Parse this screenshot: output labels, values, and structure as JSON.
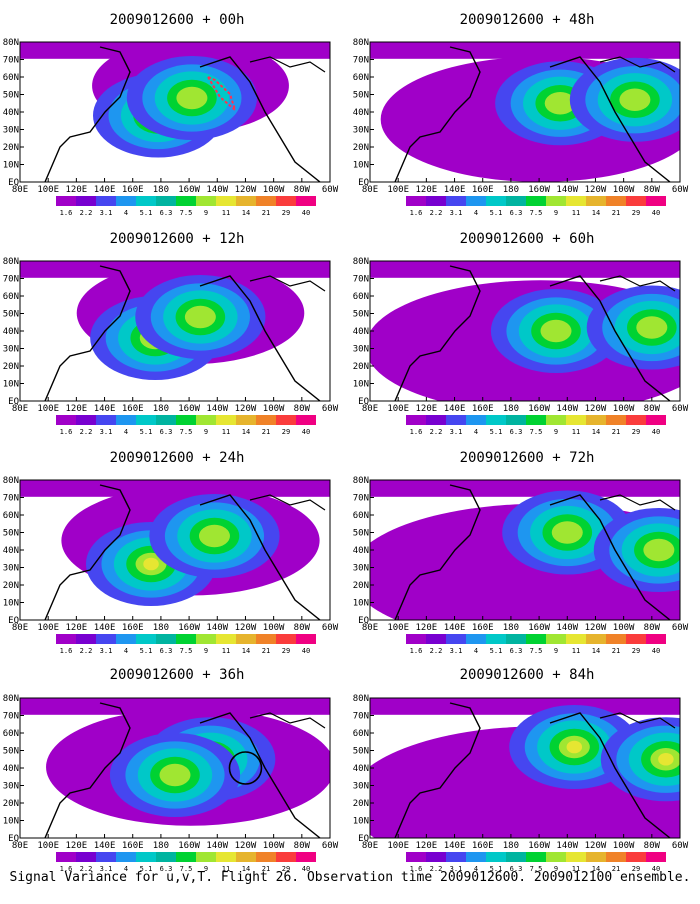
{
  "caption": "Signal Variance for u,v,T. Flight 26. Observation time 2009012600. 2009012100 ensemble.",
  "colorbar": {
    "labels": [
      "1.6",
      "2.2",
      "3.1",
      "4",
      "5.1",
      "6.3",
      "7.5",
      "9",
      "11",
      "14",
      "21",
      "29",
      "40"
    ],
    "colors": [
      "#a000c8",
      "#7800d0",
      "#4646f0",
      "#1e96f0",
      "#00c8c8",
      "#00b4a0",
      "#00d232",
      "#a0e632",
      "#e6e632",
      "#e6b42d",
      "#f08228",
      "#fa3c3c",
      "#f00082"
    ]
  },
  "axes": {
    "x_ticks": [
      "80E",
      "100E",
      "120E",
      "140E",
      "160E",
      "180",
      "160W",
      "140W",
      "120W",
      "100W",
      "80W",
      "60W"
    ],
    "y_ticks": [
      "EQ",
      "10N",
      "20N",
      "30N",
      "40N",
      "50N",
      "60N",
      "70N",
      "80N"
    ]
  },
  "chart_data": [
    {
      "type": "heatmap",
      "title": "2009012600 + 00h",
      "lead_hours": 0,
      "maxima": [
        {
          "lon": 178,
          "lat": 38,
          "value": 11
        },
        {
          "lon": -158,
          "lat": 48,
          "value": 9
        }
      ],
      "annotation": "red dashed flight track"
    },
    {
      "type": "heatmap",
      "title": "2009012600 + 12h",
      "lead_hours": 12,
      "maxima": [
        {
          "lon": 176,
          "lat": 36,
          "value": 11
        },
        {
          "lon": -152,
          "lat": 48,
          "value": 9
        }
      ]
    },
    {
      "type": "heatmap",
      "title": "2009012600 + 24h",
      "lead_hours": 24,
      "maxima": [
        {
          "lon": 173,
          "lat": 32,
          "value": 11
        },
        {
          "lon": -142,
          "lat": 48,
          "value": 9
        }
      ]
    },
    {
      "type": "heatmap",
      "title": "2009012600 + 36h",
      "lead_hours": 36,
      "maxima": [
        {
          "lon": -145,
          "lat": 45,
          "value": 9
        },
        {
          "lon": -170,
          "lat": 36,
          "value": 9
        }
      ],
      "annotation": "black circle near 120W 40N"
    },
    {
      "type": "heatmap",
      "title": "2009012600 + 48h",
      "lead_hours": 48,
      "maxima": [
        {
          "lon": -145,
          "lat": 45,
          "value": 9
        },
        {
          "lon": -92,
          "lat": 47,
          "value": 9
        }
      ]
    },
    {
      "type": "heatmap",
      "title": "2009012600 + 60h",
      "lead_hours": 60,
      "maxima": [
        {
          "lon": -148,
          "lat": 40,
          "value": 9
        },
        {
          "lon": -80,
          "lat": 42,
          "value": 9
        }
      ]
    },
    {
      "type": "heatmap",
      "title": "2009012600 + 72h",
      "lead_hours": 72,
      "maxima": [
        {
          "lon": -140,
          "lat": 50,
          "value": 9
        },
        {
          "lon": -75,
          "lat": 40,
          "value": 9
        }
      ]
    },
    {
      "type": "heatmap",
      "title": "2009012600 + 84h",
      "lead_hours": 84,
      "maxima": [
        {
          "lon": -135,
          "lat": 52,
          "value": 11
        },
        {
          "lon": -70,
          "lat": 45,
          "value": 11
        }
      ]
    }
  ]
}
